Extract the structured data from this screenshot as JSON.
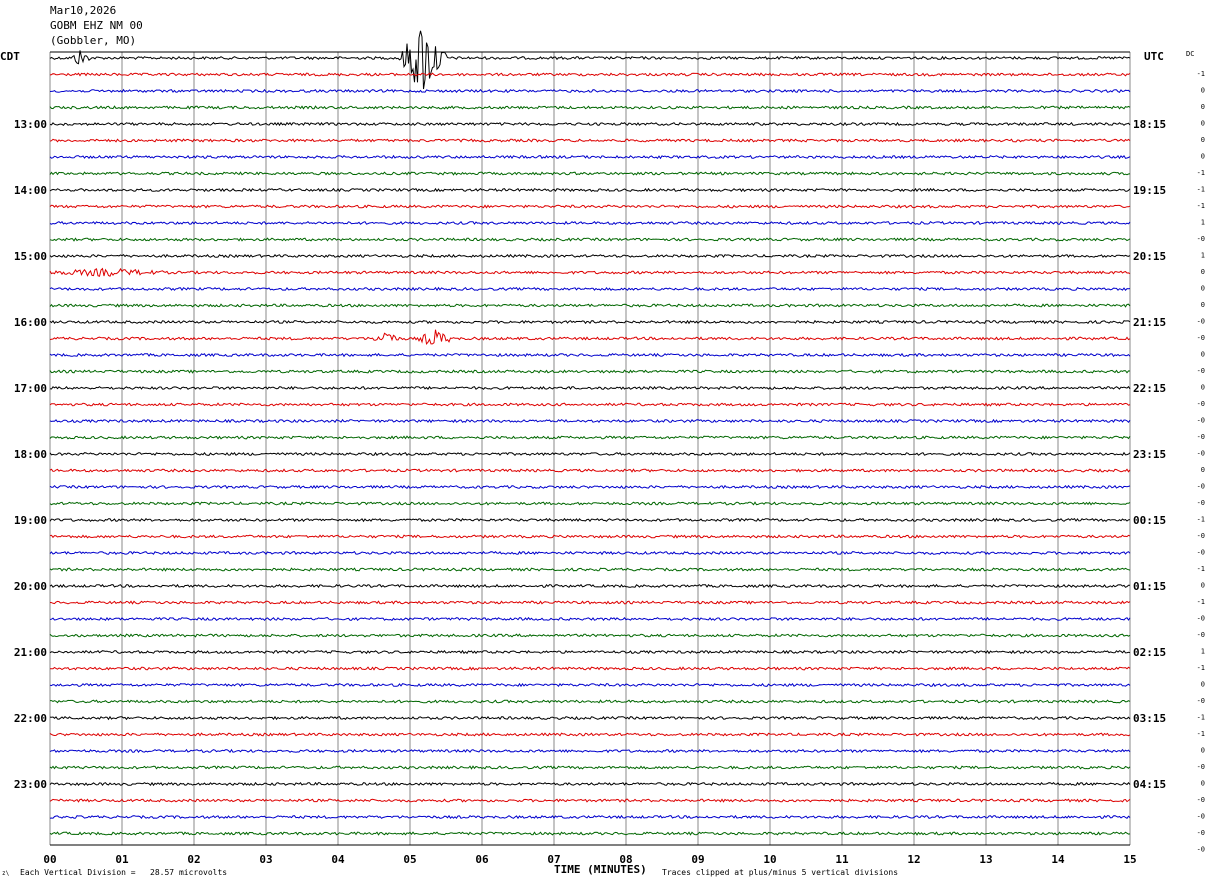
{
  "header": {
    "date": "Mar10,2026",
    "station": "GOBM EHZ NM 00",
    "location": "(Gobbler, MO)"
  },
  "labels": {
    "left_tz": "CDT",
    "right_tz": "UTC",
    "dc_label": "DC",
    "corner_mark": "z\\"
  },
  "footer": {
    "scale_note": "Each Vertical Division =   28.57 microvolts",
    "clip_note": "Traces clipped at plus/minus 5 vertical divisions"
  },
  "colors": {
    "trace_cycle": [
      "#000000",
      "#dd0000",
      "#0000cc",
      "#006600"
    ],
    "grid": "#888888"
  },
  "chart_data": {
    "type": "line",
    "xlabel": "TIME (MINUTES)",
    "xlim": [
      0,
      15
    ],
    "x_ticks": [
      "00",
      "01",
      "02",
      "03",
      "04",
      "05",
      "06",
      "07",
      "08",
      "09",
      "10",
      "11",
      "12",
      "13",
      "14",
      "15"
    ],
    "rows_per_hour": 4,
    "row_count": 48,
    "left_hour_labels": [
      {
        "row": 4,
        "label": "13:00"
      },
      {
        "row": 8,
        "label": "14:00"
      },
      {
        "row": 12,
        "label": "15:00"
      },
      {
        "row": 16,
        "label": "16:00"
      },
      {
        "row": 20,
        "label": "17:00"
      },
      {
        "row": 24,
        "label": "18:00"
      },
      {
        "row": 28,
        "label": "19:00"
      },
      {
        "row": 32,
        "label": "20:00"
      },
      {
        "row": 36,
        "label": "21:00"
      },
      {
        "row": 40,
        "label": "22:00"
      },
      {
        "row": 44,
        "label": "23:00"
      }
    ],
    "right_hour_labels": [
      {
        "row": 4,
        "label": "18:15"
      },
      {
        "row": 8,
        "label": "19:15"
      },
      {
        "row": 12,
        "label": "20:15"
      },
      {
        "row": 16,
        "label": "21:15"
      },
      {
        "row": 20,
        "label": "22:15"
      },
      {
        "row": 24,
        "label": "23:15"
      },
      {
        "row": 28,
        "label": "00:15"
      },
      {
        "row": 32,
        "label": "01:15"
      },
      {
        "row": 36,
        "label": "02:15"
      },
      {
        "row": 40,
        "label": "03:15"
      },
      {
        "row": 44,
        "label": "04:15"
      }
    ],
    "dc_offsets": [
      "-1",
      "0",
      "0",
      "0",
      "0",
      "0",
      "-1",
      "-1",
      "-1",
      "1",
      "-0",
      "1",
      "0",
      "0",
      "0",
      "-0",
      "-0",
      "0",
      "-0",
      "0",
      "-0",
      "-0",
      "-0",
      "-0",
      "0",
      "-0",
      "-0",
      "-1",
      "-0",
      "-0",
      "-1",
      "0",
      "-1",
      "-0",
      "-0",
      "1",
      "-1",
      "0",
      "-0",
      "-1",
      "-1",
      "0",
      "-0",
      "0",
      "-0",
      "-0",
      "-0",
      "-0"
    ],
    "events": [
      {
        "row": 0,
        "start_min": 0.3,
        "end_min": 0.55,
        "amplitude": "high"
      },
      {
        "row": 0,
        "start_min": 4.85,
        "end_min": 5.5,
        "amplitude": "clipped"
      },
      {
        "row": 13,
        "start_min": 0.0,
        "end_min": 1.6,
        "amplitude": "low"
      },
      {
        "row": 17,
        "start_min": 4.5,
        "end_min": 4.85,
        "amplitude": "medium"
      },
      {
        "row": 17,
        "start_min": 5.1,
        "end_min": 5.6,
        "amplitude": "medium"
      }
    ]
  }
}
